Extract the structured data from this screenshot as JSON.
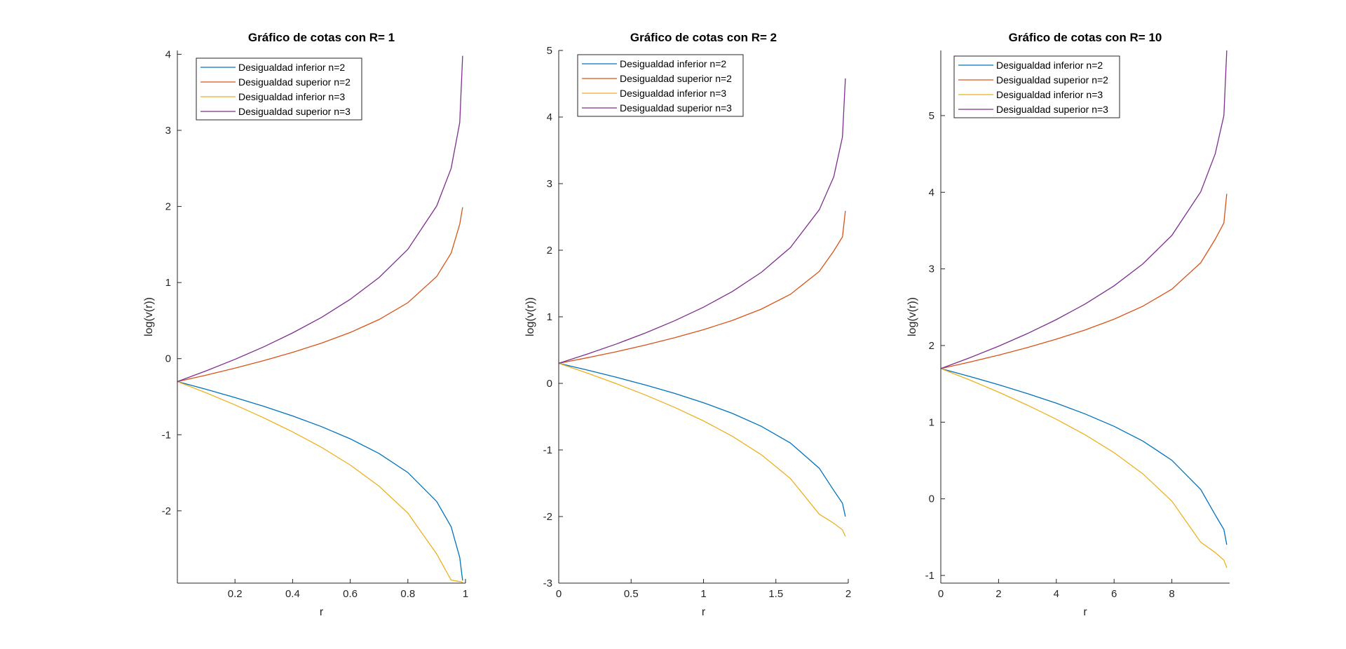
{
  "colors": {
    "inferior_n2": "#0072BD",
    "superior_n2": "#D95319",
    "inferior_n3": "#EDB120",
    "superior_n3": "#7E2F8E",
    "axis": "#262626"
  },
  "chart_data": [
    {
      "type": "line",
      "title": "Gráfico de cotas con R= 1",
      "xlabel": "r",
      "ylabel": "log(v(r))",
      "xlim": [
        0,
        1
      ],
      "ylim": [
        -2.95,
        4.05
      ],
      "xticks": [
        0.2,
        0.4,
        0.6,
        0.8,
        1
      ],
      "xtick_labels": [
        "0.2",
        "0.4",
        "0.6",
        "0.8",
        "1"
      ],
      "yticks": [
        -2,
        -1,
        0,
        1,
        2,
        3,
        4
      ],
      "ytick_labels": [
        "-2",
        "-1",
        "0",
        "1",
        "2",
        "3",
        "4"
      ],
      "grid": false,
      "legend_position": "top-left",
      "series": [
        {
          "name": "Desigualdad inferior n=2",
          "x": [
            0.0,
            0.1,
            0.2,
            0.3,
            0.4,
            0.5,
            0.6,
            0.7,
            0.8,
            0.9,
            0.95,
            0.98,
            0.99
          ],
          "y": [
            -0.301,
            -0.403,
            -0.511,
            -0.627,
            -0.753,
            -0.893,
            -1.054,
            -1.247,
            -1.497,
            -1.878,
            -2.209,
            -2.613,
            -2.916
          ]
        },
        {
          "name": "Desigualdad superior n=2",
          "x": [
            0.0,
            0.1,
            0.2,
            0.3,
            0.4,
            0.5,
            0.6,
            0.7,
            0.8,
            0.9,
            0.95,
            0.98,
            0.99
          ],
          "y": [
            -0.301,
            -0.216,
            -0.125,
            -0.026,
            0.083,
            0.204,
            0.344,
            0.514,
            0.735,
            1.08,
            1.386,
            1.767,
            1.99
          ]
        },
        {
          "name": "Desigualdad inferior n=3",
          "x": [
            0.0,
            0.1,
            0.2,
            0.3,
            0.4,
            0.5,
            0.6,
            0.7,
            0.8,
            0.9,
            0.95,
            0.98,
            0.99
          ],
          "y": [
            -0.301,
            -0.449,
            -0.608,
            -0.778,
            -0.962,
            -1.165,
            -1.398,
            -1.675,
            -2.03,
            -2.567,
            -2.91,
            -2.93,
            -2.94
          ]
        },
        {
          "name": "Desigualdad superior n=3",
          "x": [
            0.0,
            0.1,
            0.2,
            0.3,
            0.4,
            0.5,
            0.6,
            0.7,
            0.8,
            0.9,
            0.95,
            0.98,
            0.99
          ],
          "y": [
            -0.301,
            -0.16,
            -0.009,
            0.156,
            0.338,
            0.542,
            0.779,
            1.066,
            1.437,
            2.006,
            2.5,
            3.102,
            3.98
          ]
        }
      ]
    },
    {
      "type": "line",
      "title": "Gráfico de cotas con R= 2",
      "xlabel": "r",
      "ylabel": "log(v(r))",
      "xlim": [
        0,
        2
      ],
      "ylim": [
        -3,
        5
      ],
      "xticks": [
        0,
        0.5,
        1,
        1.5,
        2
      ],
      "xtick_labels": [
        "0",
        "0.5",
        "1",
        "1.5",
        "2"
      ],
      "yticks": [
        -3,
        -2,
        -1,
        0,
        1,
        2,
        3,
        4,
        5
      ],
      "ytick_labels": [
        "-3",
        "-2",
        "-1",
        "0",
        "1",
        "2",
        "3",
        "4",
        "5"
      ],
      "grid": false,
      "legend_position": "top-left",
      "series": [
        {
          "name": "Desigualdad inferior n=2",
          "x": [
            0.0,
            0.2,
            0.4,
            0.6,
            0.8,
            1.0,
            1.2,
            1.4,
            1.6,
            1.8,
            1.9,
            1.96,
            1.98
          ],
          "y": [
            0.301,
            0.199,
            0.091,
            -0.025,
            -0.151,
            -0.291,
            -0.452,
            -0.645,
            -0.895,
            -1.276,
            -1.607,
            -1.8,
            -2.0
          ]
        },
        {
          "name": "Desigualdad superior n=2",
          "x": [
            0.0,
            0.2,
            0.4,
            0.6,
            0.8,
            1.0,
            1.2,
            1.4,
            1.6,
            1.8,
            1.9,
            1.96,
            1.98
          ],
          "y": [
            0.301,
            0.386,
            0.477,
            0.576,
            0.685,
            0.806,
            0.946,
            1.116,
            1.337,
            1.682,
            1.988,
            2.2,
            2.59
          ]
        },
        {
          "name": "Desigualdad inferior n=3",
          "x": [
            0.0,
            0.2,
            0.4,
            0.6,
            0.8,
            1.0,
            1.2,
            1.4,
            1.6,
            1.8,
            1.9,
            1.96,
            1.98
          ],
          "y": [
            0.301,
            0.153,
            -0.006,
            -0.176,
            -0.36,
            -0.563,
            -0.796,
            -1.073,
            -1.428,
            -1.965,
            -2.1,
            -2.2,
            -2.3
          ]
        },
        {
          "name": "Desigualdad superior n=3",
          "x": [
            0.0,
            0.2,
            0.4,
            0.6,
            0.8,
            1.0,
            1.2,
            1.4,
            1.6,
            1.8,
            1.9,
            1.96,
            1.98
          ],
          "y": [
            0.301,
            0.442,
            0.593,
            0.758,
            0.94,
            1.144,
            1.381,
            1.668,
            2.039,
            2.608,
            3.102,
            3.7,
            4.58
          ]
        }
      ]
    },
    {
      "type": "line",
      "title": "Gráfico de cotas con R= 10",
      "xlabel": "r",
      "ylabel": "log(v(r))",
      "xlim": [
        0,
        10
      ],
      "ylim": [
        -1.1,
        5.85
      ],
      "xticks": [
        0,
        2,
        4,
        6,
        8
      ],
      "xtick_labels": [
        "0",
        "2",
        "4",
        "6",
        "8"
      ],
      "yticks": [
        -1,
        0,
        1,
        2,
        3,
        4,
        5
      ],
      "ytick_labels": [
        "-1",
        "0",
        "1",
        "2",
        "3",
        "4",
        "5"
      ],
      "grid": false,
      "legend_position": "top-left",
      "series": [
        {
          "name": "Desigualdad inferior n=2",
          "x": [
            0.0,
            1.0,
            2.0,
            3.0,
            4.0,
            5.0,
            6.0,
            7.0,
            8.0,
            9.0,
            9.5,
            9.8,
            9.9
          ],
          "y": [
            1.699,
            1.597,
            1.489,
            1.373,
            1.247,
            1.107,
            0.946,
            0.753,
            0.503,
            0.122,
            -0.209,
            -0.4,
            -0.6
          ]
        },
        {
          "name": "Desigualdad superior n=2",
          "x": [
            0.0,
            1.0,
            2.0,
            3.0,
            4.0,
            5.0,
            6.0,
            7.0,
            8.0,
            9.0,
            9.5,
            9.8,
            9.9
          ],
          "y": [
            1.699,
            1.784,
            1.875,
            1.974,
            2.083,
            2.204,
            2.344,
            2.514,
            2.735,
            3.08,
            3.386,
            3.6,
            3.98
          ]
        },
        {
          "name": "Desigualdad inferior n=3",
          "x": [
            0.0,
            1.0,
            2.0,
            3.0,
            4.0,
            5.0,
            6.0,
            7.0,
            8.0,
            9.0,
            9.5,
            9.8,
            9.9
          ],
          "y": [
            1.699,
            1.551,
            1.392,
            1.222,
            1.038,
            0.835,
            0.602,
            0.325,
            -0.03,
            -0.567,
            -0.7,
            -0.8,
            -0.9
          ]
        },
        {
          "name": "Desigualdad superior n=3",
          "x": [
            0.0,
            1.0,
            2.0,
            3.0,
            4.0,
            5.0,
            6.0,
            7.0,
            8.0,
            9.0,
            9.5,
            9.8,
            9.9
          ],
          "y": [
            1.699,
            1.84,
            1.991,
            2.156,
            2.338,
            2.542,
            2.779,
            3.066,
            3.437,
            4.006,
            4.5,
            5.0,
            5.85
          ]
        }
      ]
    }
  ]
}
